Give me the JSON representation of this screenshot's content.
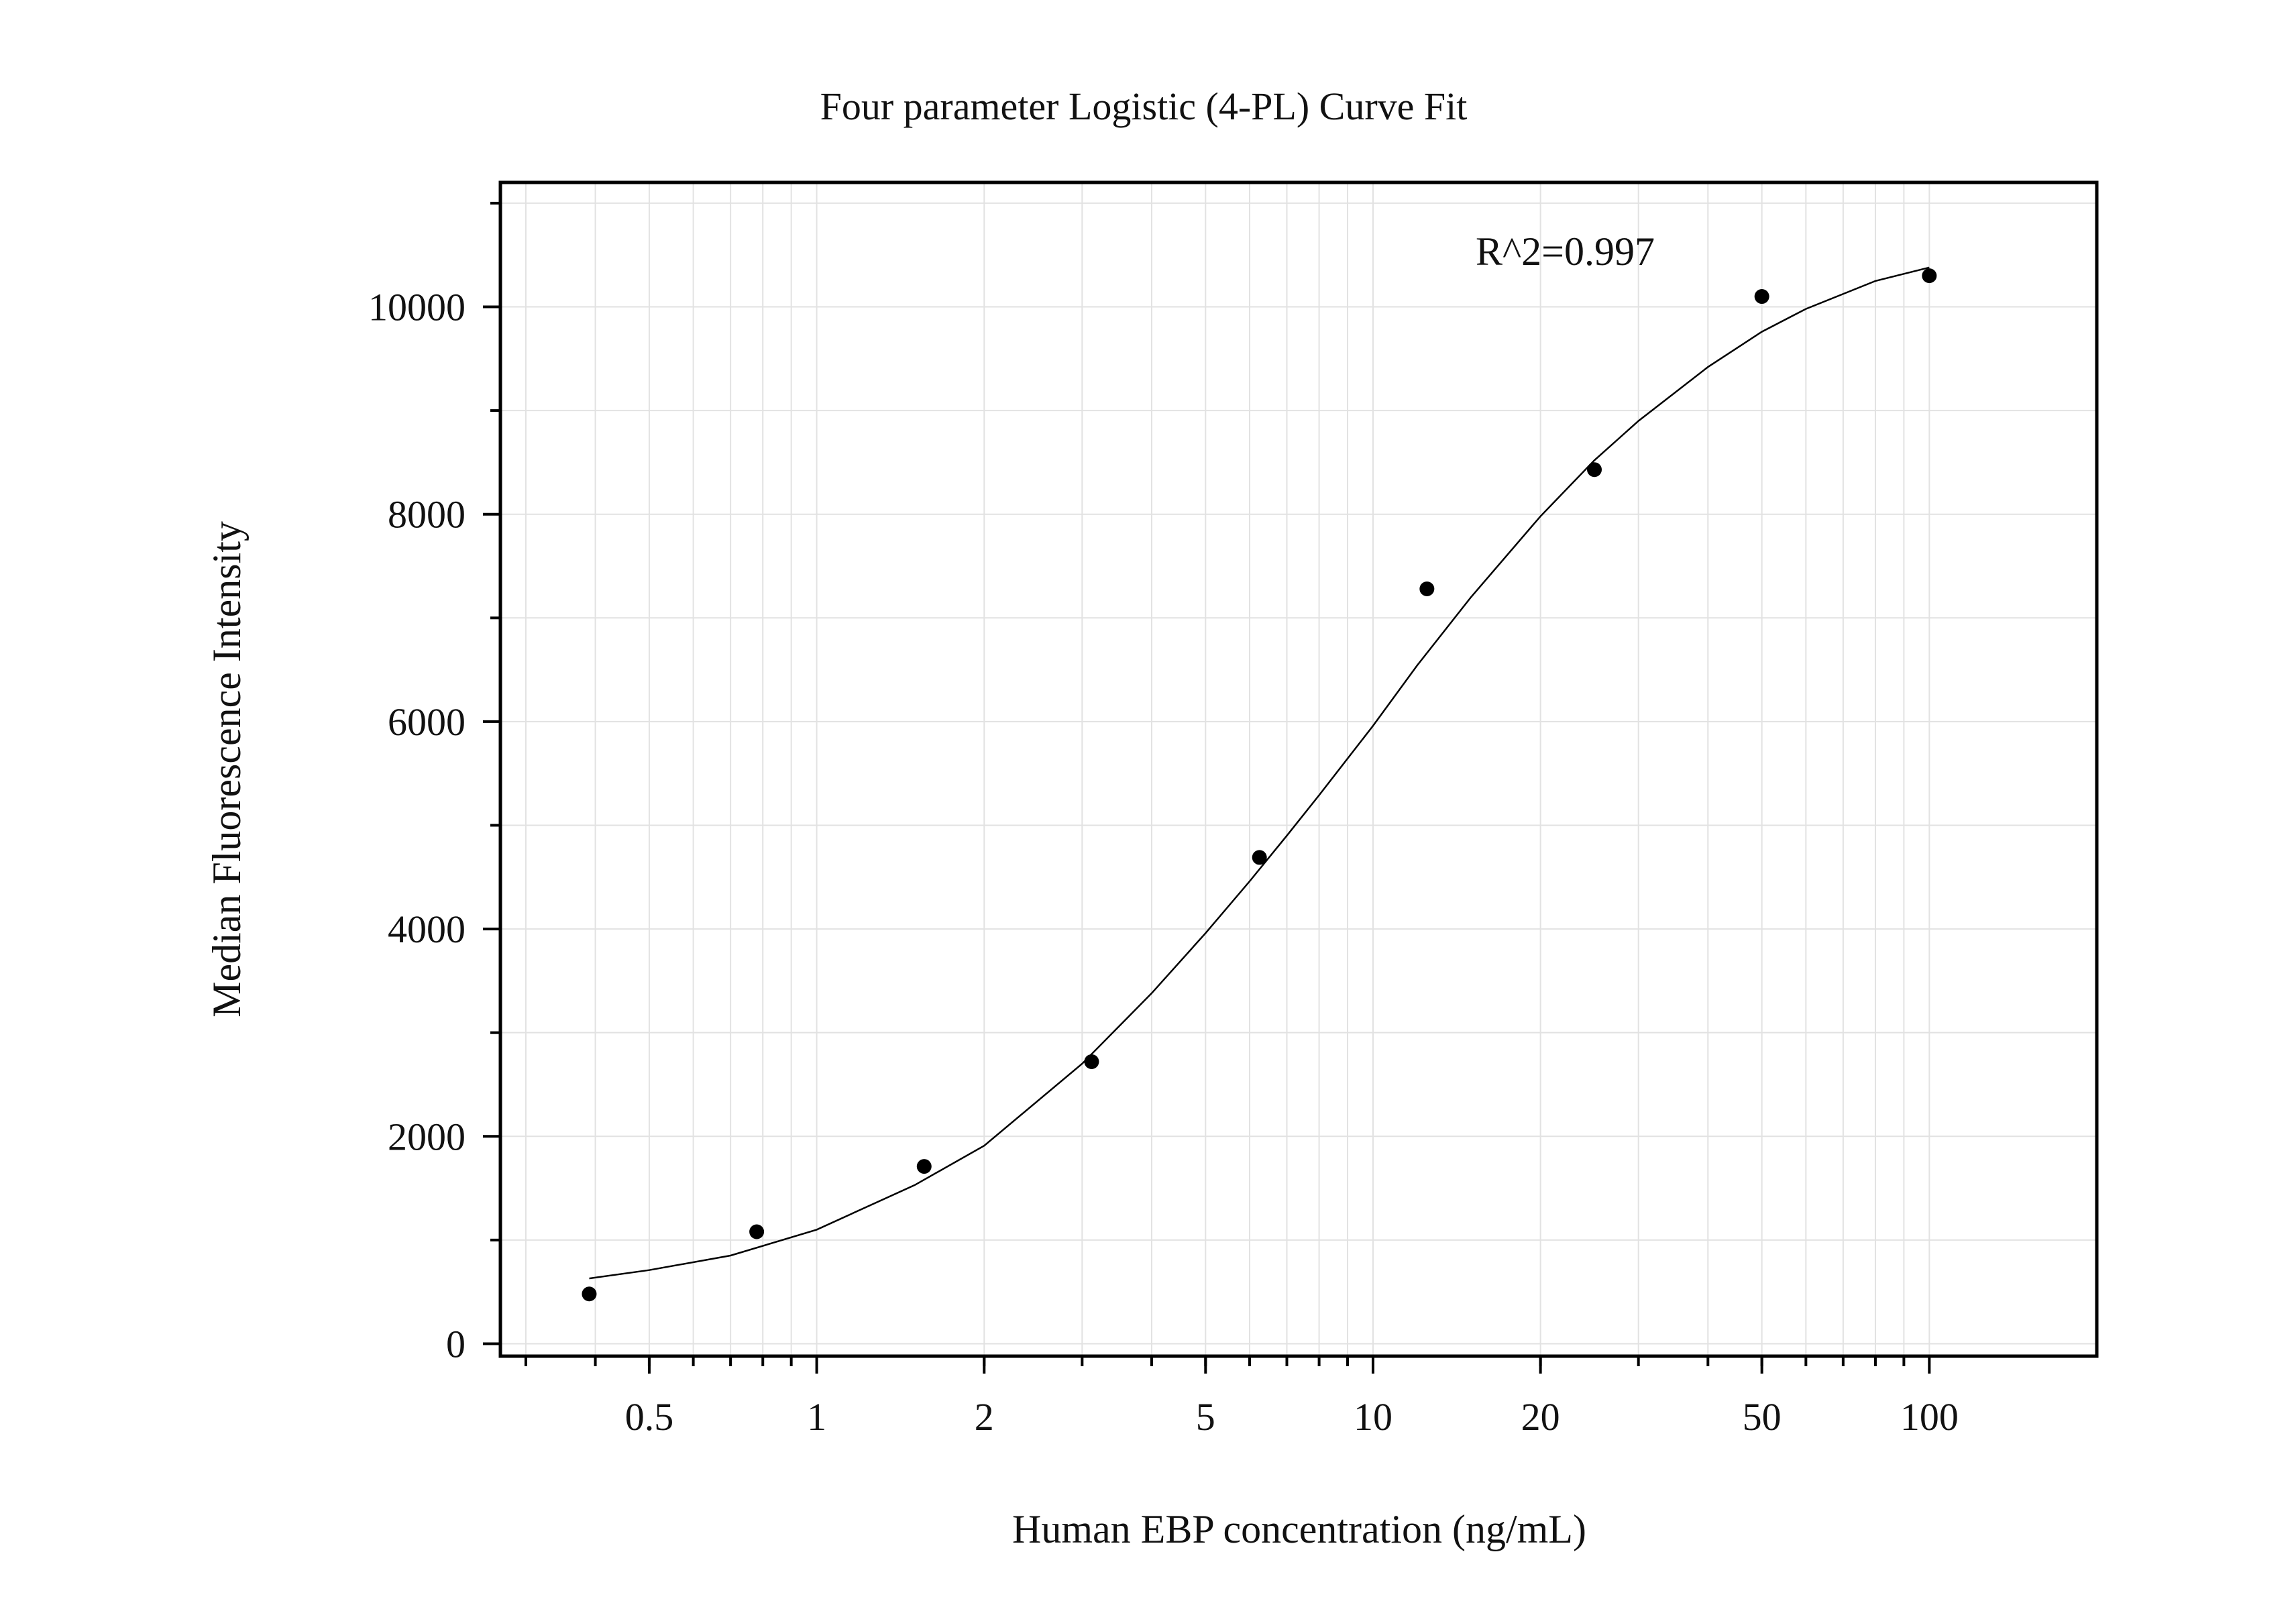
{
  "chart_data": {
    "type": "scatter",
    "title": "Four parameter Logistic (4-PL) Curve Fit",
    "xlabel": "Human EBP concentration (ng/mL)",
    "ylabel": "Median Fluorescence Intensity",
    "annotation": "R^2=0.997",
    "x_scale": "log",
    "xlim": [
      0.27,
      200
    ],
    "ylim": [
      -120,
      11200
    ],
    "x_ticks": [
      0.5,
      1,
      2,
      5,
      10,
      20,
      50,
      100
    ],
    "x_tick_labels": [
      "0.5",
      "1",
      "2",
      "5",
      "10",
      "20",
      "50",
      "100"
    ],
    "y_ticks": [
      0,
      2000,
      4000,
      6000,
      8000,
      10000
    ],
    "y_tick_labels": [
      "0",
      "2000",
      "4000",
      "6000",
      "8000",
      "10000"
    ],
    "grid": true,
    "series": [
      {
        "type": "scatter",
        "x": [
          0.39,
          0.78,
          1.56,
          3.12,
          6.25,
          12.5,
          25,
          50,
          100
        ],
        "y": [
          480,
          1080,
          1710,
          2720,
          4690,
          7280,
          8430,
          10100,
          10300
        ]
      },
      {
        "type": "line",
        "x": [
          0.39,
          0.5,
          0.7,
          1,
          1.5,
          2,
          3,
          4,
          5,
          6,
          7,
          8,
          10,
          12,
          15,
          20,
          25,
          30,
          40,
          50,
          60,
          80,
          100
        ],
        "y": [
          630,
          710,
          850,
          1100,
          1530,
          1910,
          2700,
          3380,
          3960,
          4460,
          4900,
          5290,
          5960,
          6540,
          7200,
          7980,
          8520,
          8900,
          9420,
          9760,
          9980,
          10250,
          10380
        ]
      }
    ],
    "colors": {
      "points": "#000000",
      "curve": "#000000",
      "grid": "#e2e2e2",
      "frame": "#000000"
    }
  }
}
